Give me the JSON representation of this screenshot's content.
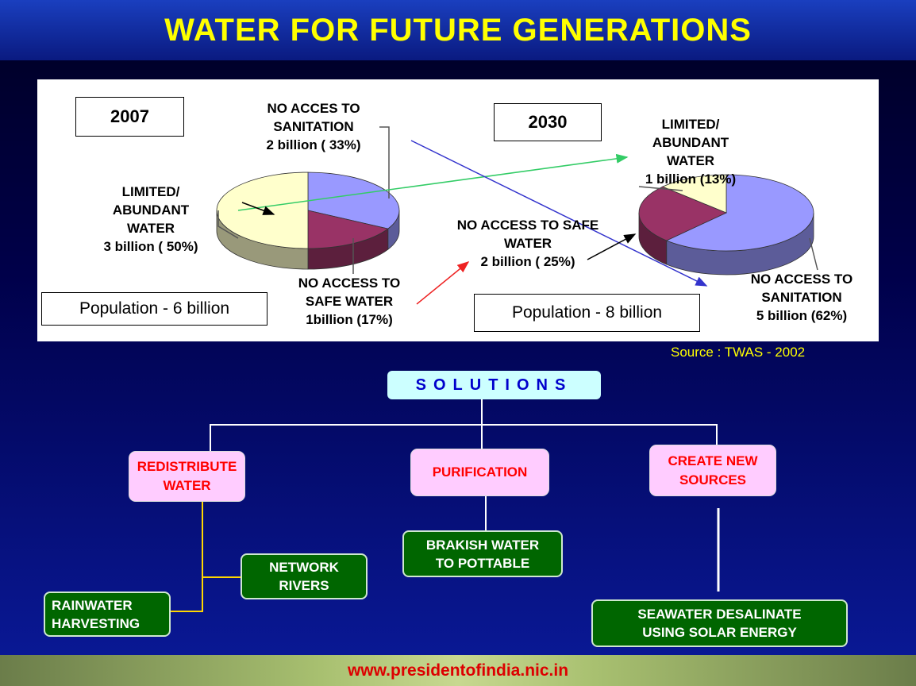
{
  "header": {
    "title": "WATER FOR FUTURE GENERATIONS"
  },
  "chart_data": [
    {
      "type": "pie",
      "title": "2007",
      "subtitle": "Population - 6 billion",
      "categories": [
        "NO ACCES TO SANITATION",
        "NO ACCESS TO SAFE WATER",
        "LIMITED/ ABUNDANT WATER"
      ],
      "values": [
        33,
        17,
        50
      ],
      "value_labels": [
        "2 billion ( 33%)",
        "1billion (17%)",
        "3 billion ( 50%)"
      ],
      "colors": [
        "#9999ff",
        "#993366",
        "#ffffcc"
      ]
    },
    {
      "type": "pie",
      "title": "2030",
      "subtitle": "Population - 8 billion",
      "categories": [
        "NO ACCESS TO SANITATION",
        "NO ACCESS TO SAFE WATER",
        "LIMITED/ ABUNDANT WATER"
      ],
      "values": [
        62,
        25,
        13
      ],
      "value_labels": [
        "5 billion (62%)",
        "2 billion ( 25%)",
        "1 billion (13%)"
      ],
      "colors": [
        "#9999ff",
        "#993366",
        "#ffffcc"
      ]
    }
  ],
  "source": "Source : TWAS - 2002",
  "solutions": {
    "title": "SOLUTIONS",
    "nodes": [
      {
        "label": "REDISTRIBUTE WATER",
        "children": [
          "NETWORK RIVERS",
          "RAINWATER HARVESTING"
        ]
      },
      {
        "label": "PURIFICATION",
        "children": [
          "BRAKISH WATER TO POTTABLE"
        ]
      },
      {
        "label": "CREATE NEW SOURCES",
        "children": [
          "SEAWATER DESALINATE USING SOLAR ENERGY"
        ]
      }
    ]
  },
  "footer": {
    "url": "www.presidentofindia.nic.in"
  }
}
